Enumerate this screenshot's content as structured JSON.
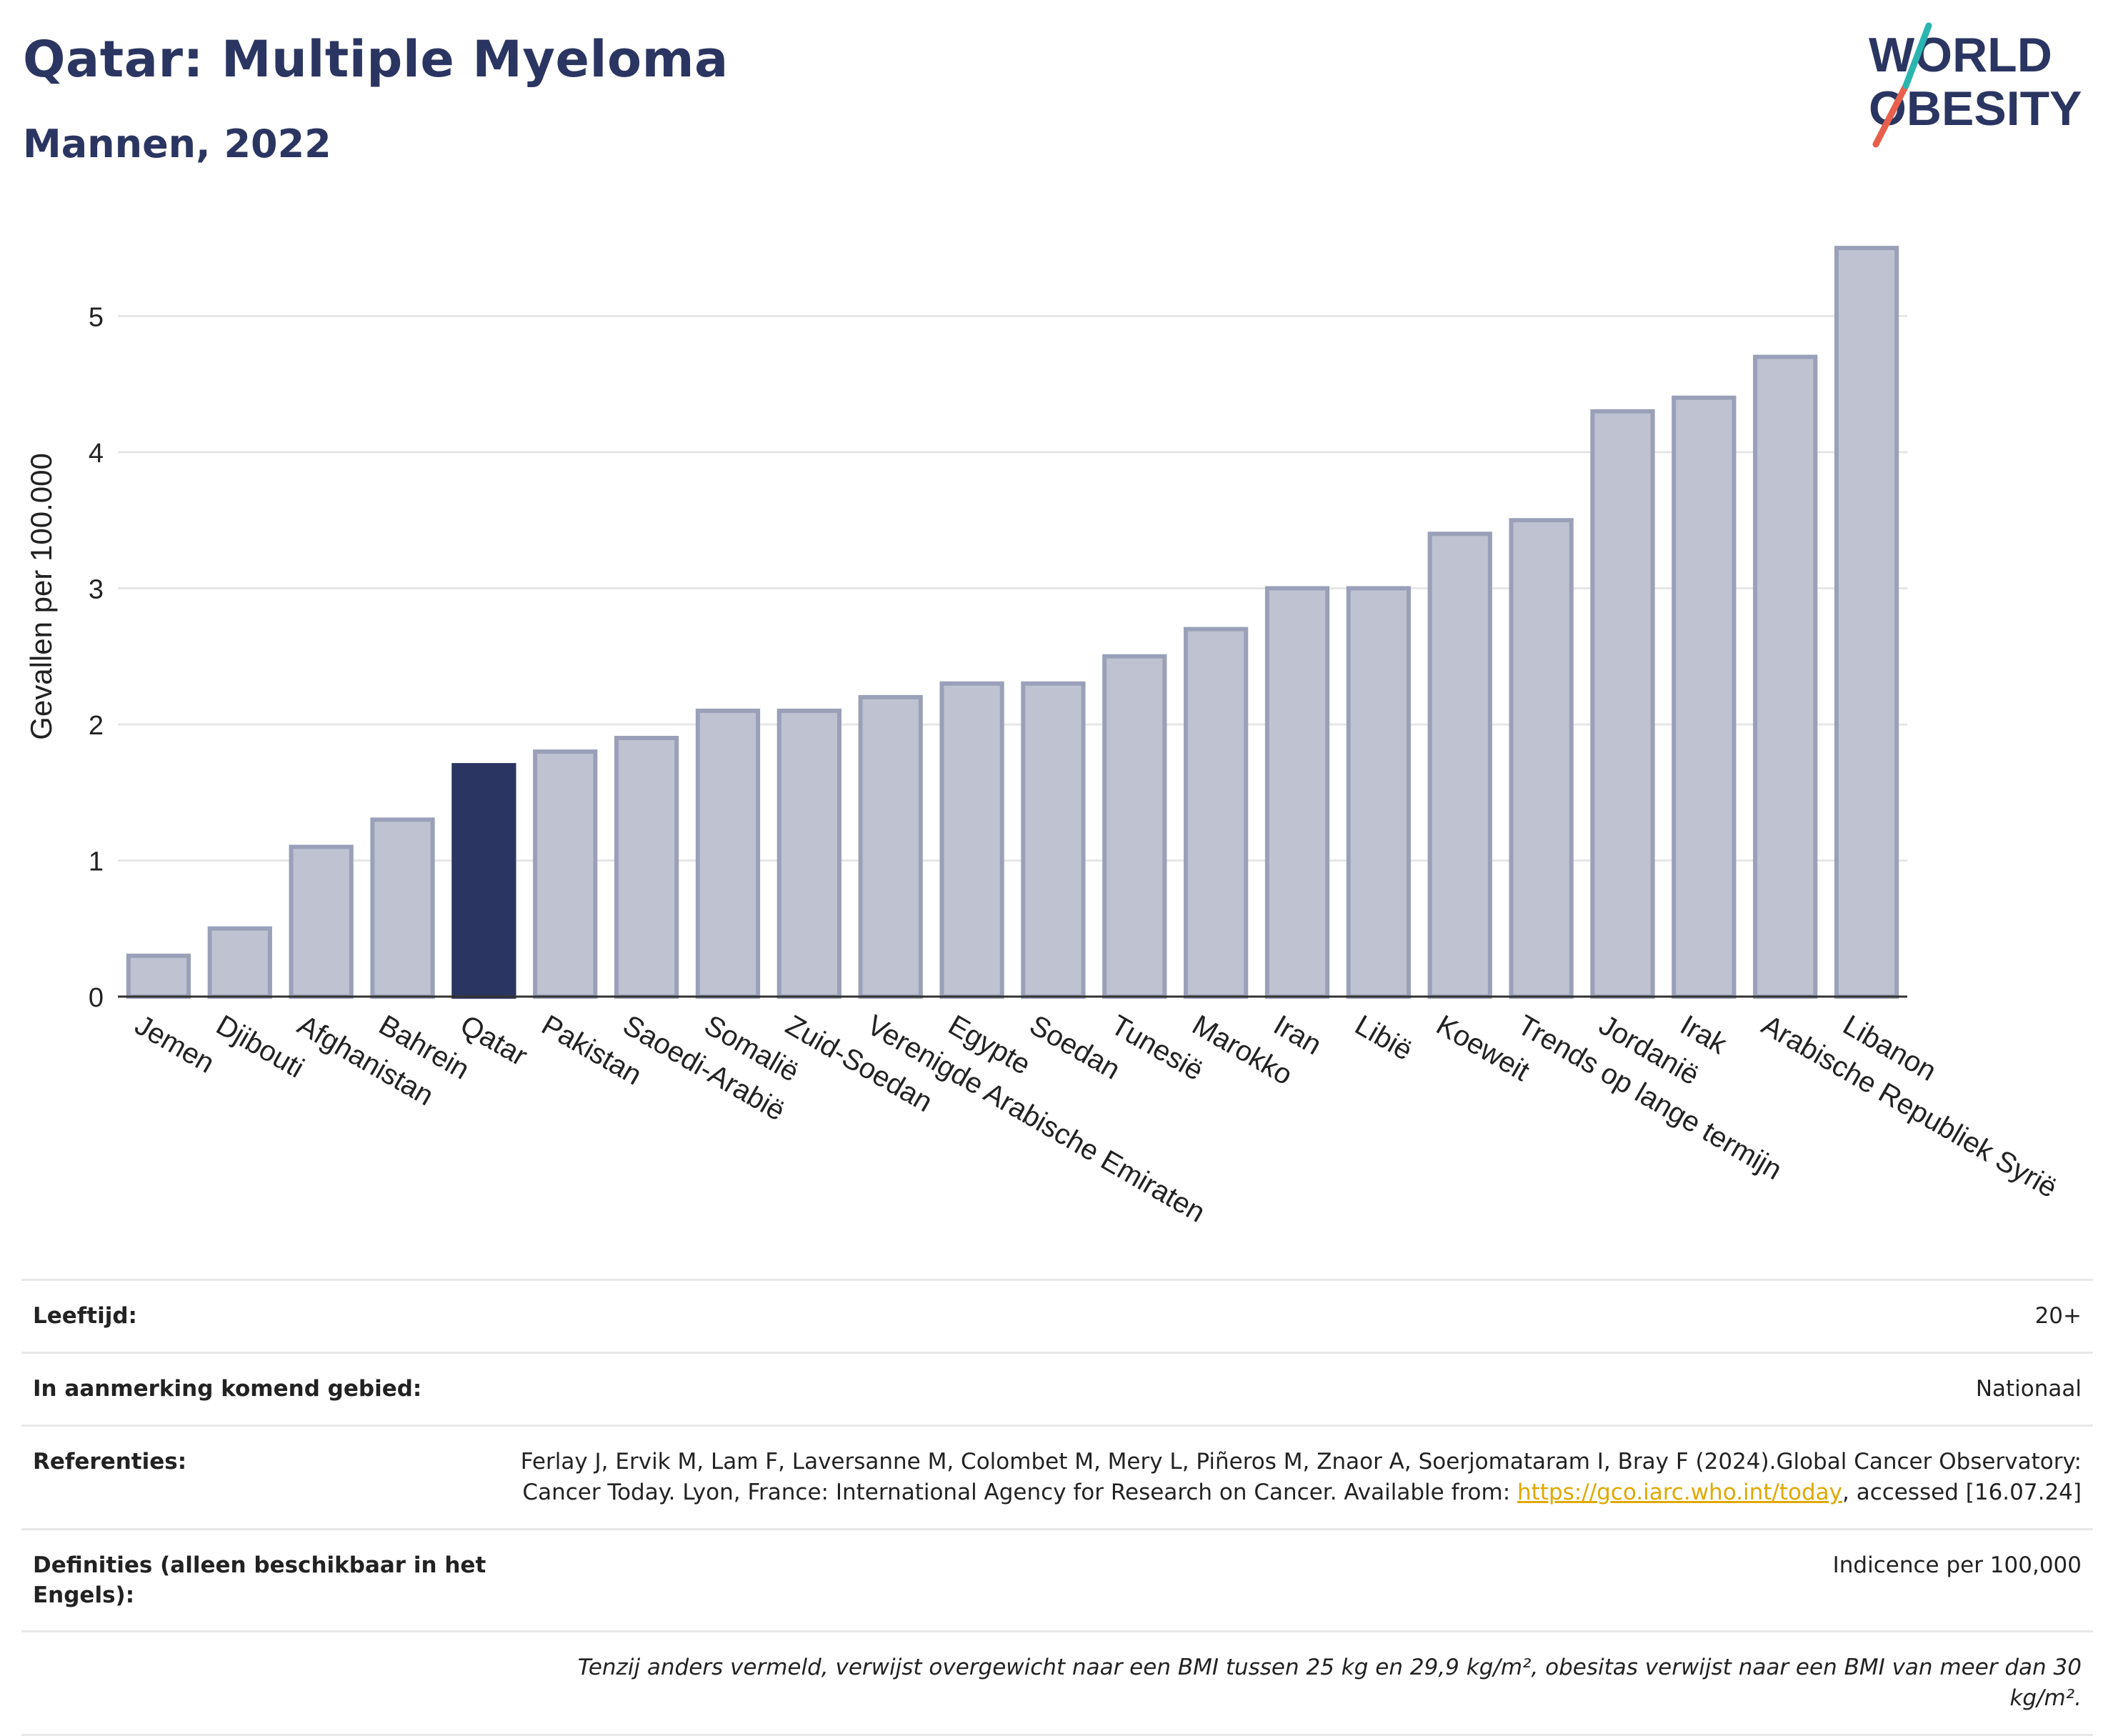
{
  "header": {
    "title": "Qatar: Multiple Myeloma",
    "subtitle": "Mannen, 2022"
  },
  "logo": {
    "line1": "WORLD",
    "line2": "OBESITY"
  },
  "colors": {
    "highlight": "#2b3561",
    "bar": "#bfc3d1",
    "bar_border": "#9aa0b8",
    "accent_red": "#e8604c",
    "accent_teal": "#2bb5b0"
  },
  "chart_data": {
    "type": "bar",
    "categories": [
      "Jemen",
      "Djibouti",
      "Afghanistan",
      "Bahrein",
      "Qatar",
      "Pakistan",
      "Saoedi-Arabië",
      "Somalië",
      "Zuid-Soedan",
      "Verenigde Arabische Emiraten",
      "Egypte",
      "Soedan",
      "Tunesië",
      "Marokko",
      "Iran",
      "Libië",
      "Koeweit",
      "Trends op lange termijn",
      "Jordanië",
      "Irak",
      "Arabische Republiek Syrië",
      "Libanon"
    ],
    "values": [
      0.3,
      0.5,
      1.1,
      1.3,
      1.7,
      1.8,
      1.9,
      2.1,
      2.1,
      2.2,
      2.3,
      2.3,
      2.5,
      2.7,
      3.0,
      3.0,
      3.4,
      3.5,
      4.3,
      4.4,
      4.7,
      5.5
    ],
    "highlight": "Qatar",
    "ylabel": "Gevallen per 100.000",
    "xlabel": "",
    "ylim": [
      0,
      5.8
    ],
    "yticks": [
      0,
      1,
      2,
      3,
      4,
      5
    ],
    "grid": true
  },
  "info": {
    "age_label": "Leeftijd:",
    "age_value": "20+",
    "area_label": "In aanmerking komend gebied:",
    "area_value": "Nationaal",
    "ref_label": "Referenties:",
    "ref_text1": "Ferlay J, Ervik M, Lam F, Laversanne M, Colombet M, Mery L, Piñeros M, Znaor A, Soerjomataram I, Bray F (2024).Global Cancer Observatory: Cancer Today. Lyon, France: International Agency for Research on Cancer. Available from: ",
    "ref_link": "https://gco.iarc.who.int/today",
    "ref_text2": ", accessed [16.07.24]",
    "def_label": "Definities (alleen beschikbaar in het Engels):",
    "def_value": "Indicence per 100,000",
    "note": "Tenzij anders vermeld, verwijst overgewicht naar een BMI tussen 25 kg en 29,9 kg/m², obesitas verwijst naar een BMI van meer dan 30 kg/m²."
  }
}
